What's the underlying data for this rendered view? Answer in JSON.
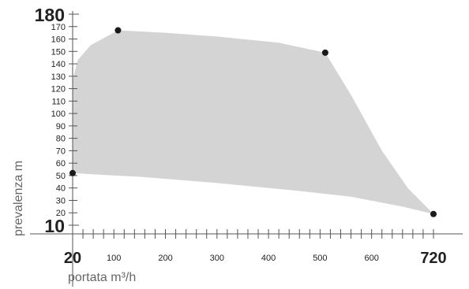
{
  "chart_data": {
    "type": "area",
    "title": "",
    "xlabel": "portata m³/h",
    "ylabel": "prevalenza m",
    "xlim": [
      10,
      730
    ],
    "ylim": [
      10,
      180
    ],
    "grid": false,
    "x_major_ticks": [
      {
        "value": 20,
        "label": "20"
      },
      {
        "value": 720,
        "label": "720"
      }
    ],
    "x_minor_ticks": [
      {
        "value": 100,
        "label": "100"
      },
      {
        "value": 200,
        "label": "200"
      },
      {
        "value": 300,
        "label": "300"
      },
      {
        "value": 400,
        "label": "400"
      },
      {
        "value": 500,
        "label": "500"
      },
      {
        "value": 600,
        "label": "600"
      }
    ],
    "y_major_ticks": [
      {
        "value": 10,
        "label": "10"
      },
      {
        "value": 180,
        "label": "180"
      }
    ],
    "y_minor_ticks": [
      {
        "value": 20,
        "label": "20"
      },
      {
        "value": 30,
        "label": "30"
      },
      {
        "value": 40,
        "label": "40"
      },
      {
        "value": 50,
        "label": "50"
      },
      {
        "value": 60,
        "label": "60"
      },
      {
        "value": 70,
        "label": "70"
      },
      {
        "value": 80,
        "label": "80"
      },
      {
        "value": 90,
        "label": "90"
      },
      {
        "value": 100,
        "label": "100"
      },
      {
        "value": 110,
        "label": "110"
      },
      {
        "value": 120,
        "label": "120"
      },
      {
        "value": 130,
        "label": "130"
      },
      {
        "value": 140,
        "label": "140"
      },
      {
        "value": 150,
        "label": "150"
      },
      {
        "value": 160,
        "label": "160"
      },
      {
        "value": 170,
        "label": "170"
      }
    ],
    "operating_region": {
      "points": [
        {
          "x": 20,
          "y": 52
        },
        {
          "x": 20,
          "y": 127
        },
        {
          "x": 30,
          "y": 143
        },
        {
          "x": 55,
          "y": 155
        },
        {
          "x": 108,
          "y": 167
        },
        {
          "x": 200,
          "y": 165
        },
        {
          "x": 300,
          "y": 162
        },
        {
          "x": 420,
          "y": 157
        },
        {
          "x": 510,
          "y": 149
        },
        {
          "x": 560,
          "y": 115
        },
        {
          "x": 620,
          "y": 70
        },
        {
          "x": 670,
          "y": 40
        },
        {
          "x": 720,
          "y": 19
        },
        {
          "x": 660,
          "y": 25
        },
        {
          "x": 560,
          "y": 33
        },
        {
          "x": 450,
          "y": 38
        },
        {
          "x": 300,
          "y": 44
        },
        {
          "x": 150,
          "y": 49
        },
        {
          "x": 60,
          "y": 51
        },
        {
          "x": 20,
          "y": 52
        }
      ],
      "fill": "#d4d4d4"
    },
    "corner_points": [
      {
        "x": 20,
        "y": 52
      },
      {
        "x": 108,
        "y": 167
      },
      {
        "x": 510,
        "y": 149
      },
      {
        "x": 720,
        "y": 19
      }
    ],
    "colors": {
      "axis": "#555555",
      "region": "#d4d4d4",
      "point": "#1a1a1a"
    }
  }
}
